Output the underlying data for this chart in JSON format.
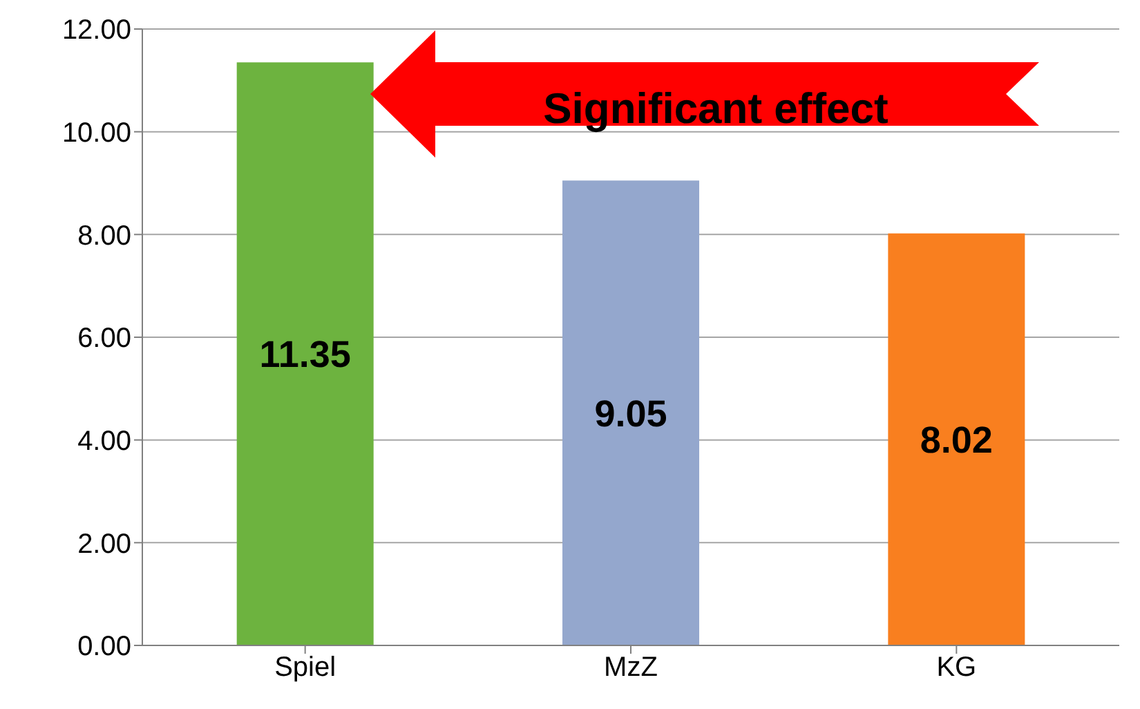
{
  "chart_data": {
    "type": "bar",
    "categories": [
      "Spiel",
      "MzZ",
      "KG"
    ],
    "values": [
      11.35,
      9.05,
      8.02
    ],
    "colors": [
      "#6db33f",
      "#94a7cd",
      "#f97f1f"
    ],
    "ylim": [
      0,
      12
    ],
    "yticks": [
      {
        "value": 0,
        "label": "0.00"
      },
      {
        "value": 2,
        "label": "2.00"
      },
      {
        "value": 4,
        "label": "4.00"
      },
      {
        "value": 6,
        "label": "6.00"
      },
      {
        "value": 8,
        "label": "8.00"
      },
      {
        "value": 10,
        "label": "10.00"
      },
      {
        "value": 12,
        "label": "12.00"
      }
    ],
    "grid": "y",
    "data_labels": true,
    "annotations": [
      "Significant effect"
    ]
  }
}
